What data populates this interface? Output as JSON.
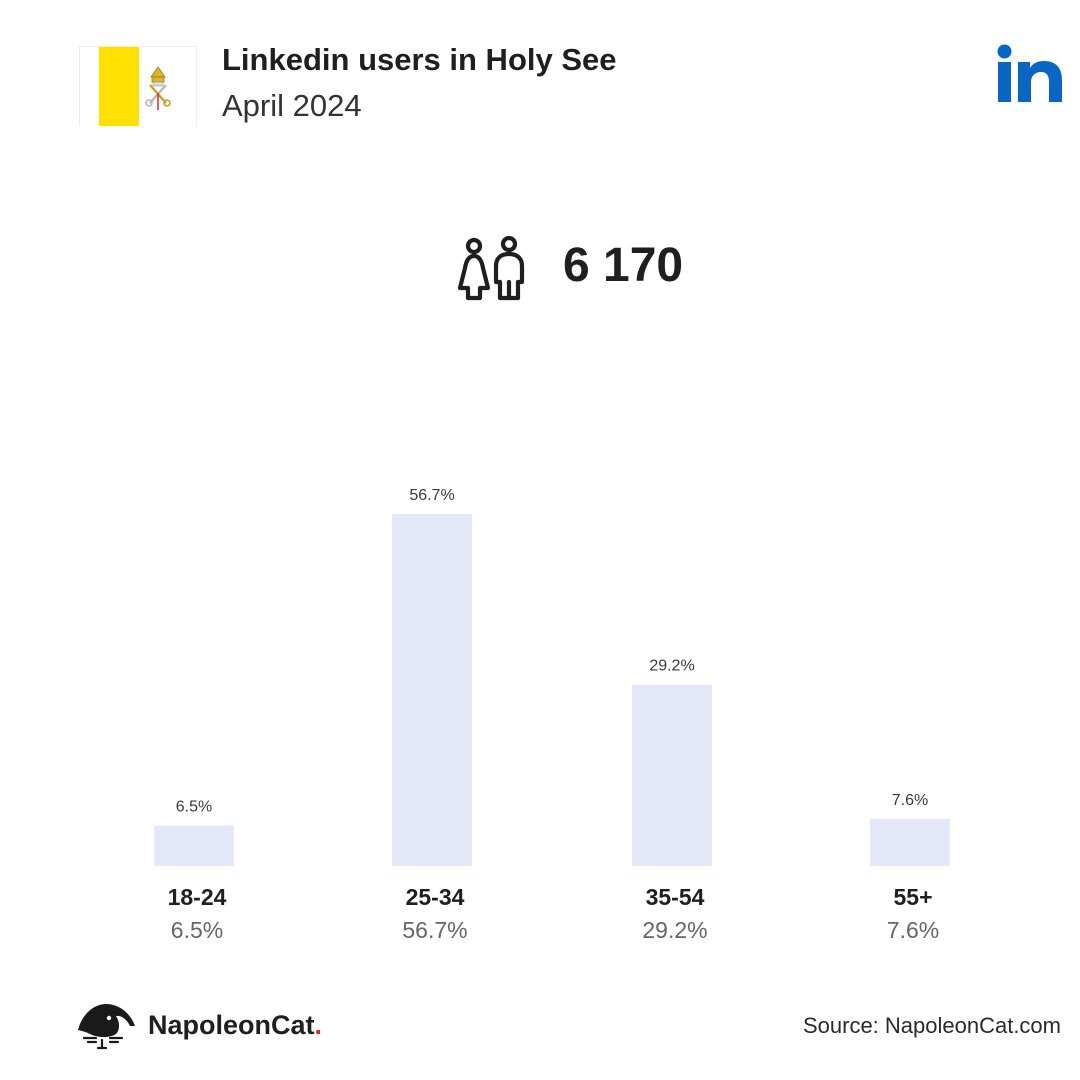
{
  "header": {
    "title": "Linkedin users in Holy See",
    "subtitle": "April 2024"
  },
  "summary": {
    "total_users": "6 170"
  },
  "colors": {
    "bar": "#e4e7f8",
    "linkedin_blue": "#0a66c2",
    "flag_yellow": "#ffe000",
    "brand_dot": "#e3262e"
  },
  "icons": {
    "flag": "holy-see-flag-icon",
    "platform": "linkedin-logo-icon",
    "users": "man-woman-icon",
    "brand": "napoleoncat-logo-icon"
  },
  "chart_data": {
    "type": "bar",
    "categories": [
      "18-24",
      "25-34",
      "35-54",
      "55+"
    ],
    "values": [
      6.5,
      56.7,
      29.2,
      7.6
    ],
    "value_labels": [
      "6.5%",
      "56.7%",
      "29.2%",
      "7.6%"
    ],
    "ylim": [
      0,
      56.7
    ],
    "grid": false,
    "legend": "none"
  },
  "footer": {
    "brand_name": "NapoleonCat",
    "brand_dot": ".",
    "source": "Source: NapoleonCat.com"
  }
}
